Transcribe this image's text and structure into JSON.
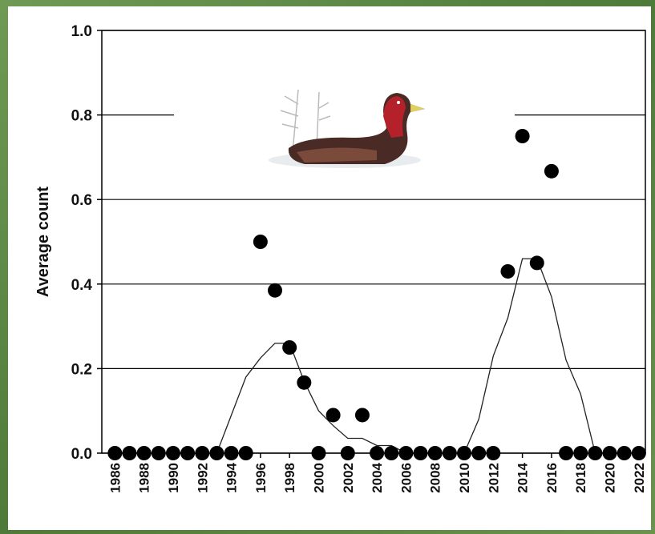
{
  "chart_data": {
    "type": "scatter",
    "y_label": "Average count",
    "x": [
      1986,
      1987,
      1988,
      1989,
      1990,
      1991,
      1992,
      1993,
      1994,
      1995,
      1996,
      1997,
      1998,
      1999,
      2000,
      2001,
      2002,
      2003,
      2004,
      2005,
      2006,
      2007,
      2008,
      2009,
      2010,
      2011,
      2012,
      2013,
      2014,
      2015,
      2016,
      2017,
      2018,
      2019,
      2020,
      2021,
      2022
    ],
    "series": [
      {
        "mode": "markers",
        "color": "#000000",
        "values": [
          0,
          0,
          0,
          0,
          0,
          0,
          0,
          0,
          0,
          0,
          0.5,
          0.385,
          0.25,
          0.167,
          0,
          0.09,
          0,
          0.09,
          0,
          0,
          0,
          0,
          0,
          0,
          0,
          0,
          0,
          0.43,
          0.75,
          0.45,
          0.667,
          0,
          0,
          0,
          0,
          0,
          0
        ]
      },
      {
        "mode": "lines",
        "color": "#222222",
        "values": [
          0,
          0,
          0,
          0,
          0,
          0,
          0,
          0,
          0.09,
          0.18,
          0.225,
          0.26,
          0.26,
          0.17,
          0.1,
          0.065,
          0.035,
          0.035,
          0.018,
          0.018,
          0,
          0,
          0,
          0,
          0,
          0.08,
          0.23,
          0.32,
          0.46,
          0.46,
          0.37,
          0.22,
          0.14,
          0,
          0,
          0,
          0
        ]
      }
    ],
    "xlim": [
      1985.1,
      2022.45
    ],
    "xticks": [
      1986,
      1988,
      1990,
      1992,
      1994,
      1996,
      1998,
      2000,
      2002,
      2004,
      2006,
      2008,
      2010,
      2012,
      2014,
      2016,
      2018,
      2020,
      2022
    ],
    "ylim": [
      0,
      1
    ],
    "yticks": [
      {
        "value": 0,
        "label": "0.0"
      },
      {
        "value": 0.2,
        "label": "0.2"
      },
      {
        "value": 0.4,
        "label": "0.4"
      },
      {
        "value": 0.6,
        "label": "0.6"
      },
      {
        "value": 0.8,
        "label": "0.8"
      },
      {
        "value": 1,
        "label": "1.0"
      }
    ],
    "grid": true
  }
}
